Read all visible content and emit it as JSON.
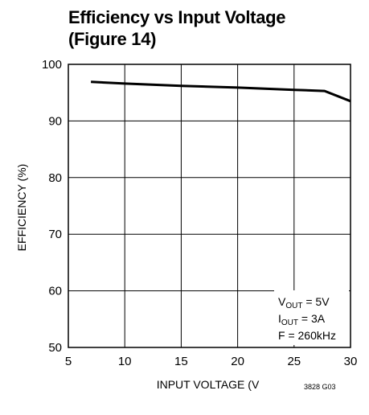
{
  "title_line1": "Efficiency vs Input Voltage",
  "title_line2": "(Figure 14)",
  "figure_code": "3828 G03",
  "chart_data": {
    "type": "line",
    "xlabel": "INPUT VOLTAGE (V",
    "ylabel": "EFFICIENCY (%)",
    "xlim": [
      5,
      30
    ],
    "ylim": [
      50,
      100
    ],
    "xticks": [
      5,
      10,
      15,
      20,
      25,
      30
    ],
    "yticks": [
      50,
      60,
      70,
      80,
      90,
      100
    ],
    "grid": true,
    "line_color": "#000000",
    "series": [
      {
        "x": [
          7,
          10,
          15,
          20,
          25,
          27.7,
          30
        ],
        "y": [
          96.9,
          96.6,
          96.2,
          95.9,
          95.5,
          95.3,
          93.5
        ]
      }
    ],
    "annotation": {
      "line1_main": "V",
      "line1_sub": "OUT",
      "line1_rest": " = 5V",
      "line2_main": "I",
      "line2_sub": "OUT",
      "line2_rest": " = 3A",
      "line3": "F = 260kHz"
    }
  }
}
